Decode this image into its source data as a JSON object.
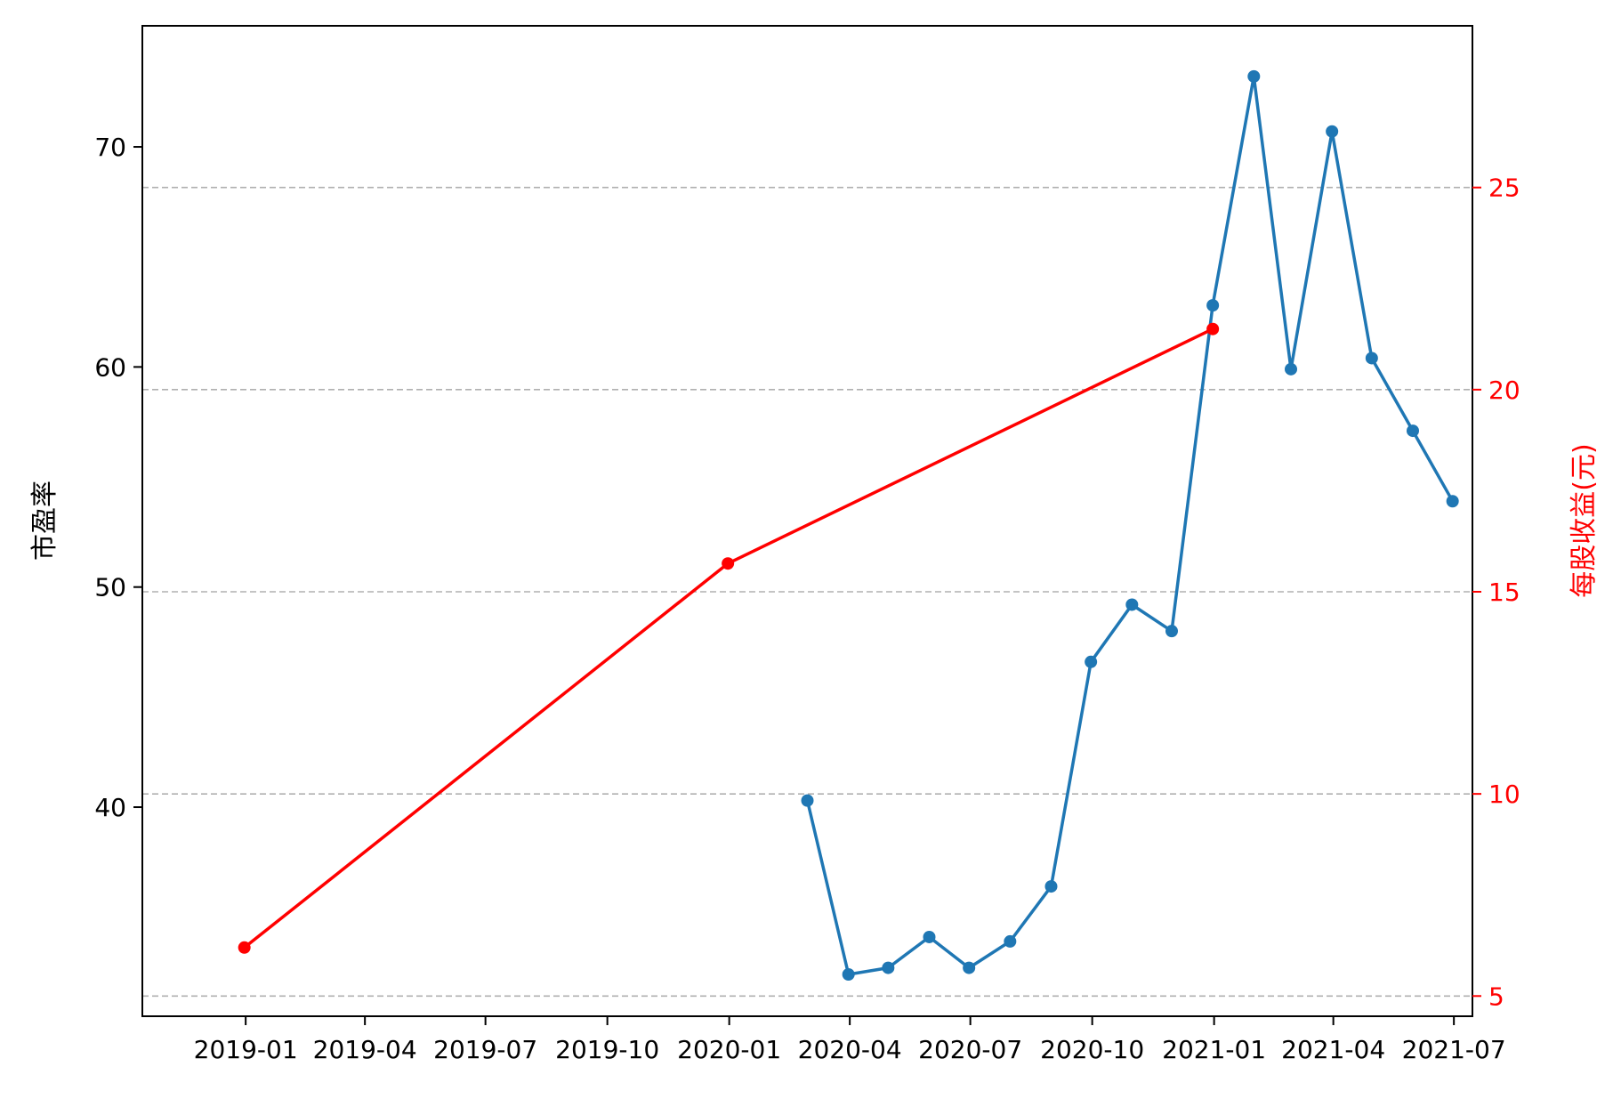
{
  "colors": {
    "pe_series": "#1f77b4",
    "eps_series": "#ff0000",
    "left_axis": "#000000",
    "right_axis": "#ff0000",
    "grid": "#b0b0b0"
  },
  "chart_data": {
    "type": "line",
    "title": "",
    "grid": {
      "y_right": true,
      "style": "dashed"
    },
    "x_axis": {
      "type": "date",
      "range": [
        "2018-10-15",
        "2021-07-15"
      ],
      "ticks": [
        "2019-01",
        "2019-04",
        "2019-07",
        "2019-10",
        "2020-01",
        "2020-04",
        "2020-07",
        "2020-10",
        "2021-01",
        "2021-04",
        "2021-07"
      ]
    },
    "y_left": {
      "label": "市盈率",
      "range": [
        30.5,
        75.5
      ],
      "ticks": [
        "40",
        "50",
        "60",
        "70"
      ]
    },
    "y_right": {
      "label": "每股收益(元)",
      "range": [
        4.5,
        29
      ],
      "ticks": [
        "5",
        "10",
        "15",
        "20",
        "25"
      ]
    },
    "series": [
      {
        "axis": "left",
        "points": [
          {
            "x": "2020-02-29",
            "y": 40.3
          },
          {
            "x": "2020-03-31",
            "y": 32.4
          },
          {
            "x": "2020-04-30",
            "y": 32.7
          },
          {
            "x": "2020-05-31",
            "y": 34.1
          },
          {
            "x": "2020-06-30",
            "y": 32.7
          },
          {
            "x": "2020-07-31",
            "y": 33.9
          },
          {
            "x": "2020-08-31",
            "y": 36.4
          },
          {
            "x": "2020-09-30",
            "y": 46.6
          },
          {
            "x": "2020-10-31",
            "y": 49.2
          },
          {
            "x": "2020-11-30",
            "y": 48.0
          },
          {
            "x": "2020-12-31",
            "y": 62.8
          },
          {
            "x": "2021-01-31",
            "y": 73.2
          },
          {
            "x": "2021-02-28",
            "y": 59.9
          },
          {
            "x": "2021-03-31",
            "y": 70.7
          },
          {
            "x": "2021-04-30",
            "y": 60.4
          },
          {
            "x": "2021-05-31",
            "y": 57.1
          },
          {
            "x": "2021-06-30",
            "y": 53.9
          }
        ]
      },
      {
        "axis": "right",
        "points": [
          {
            "x": "2018-12-31",
            "y": 6.2
          },
          {
            "x": "2019-12-31",
            "y": 15.7
          },
          {
            "x": "2020-12-31",
            "y": 21.5
          }
        ]
      }
    ]
  }
}
